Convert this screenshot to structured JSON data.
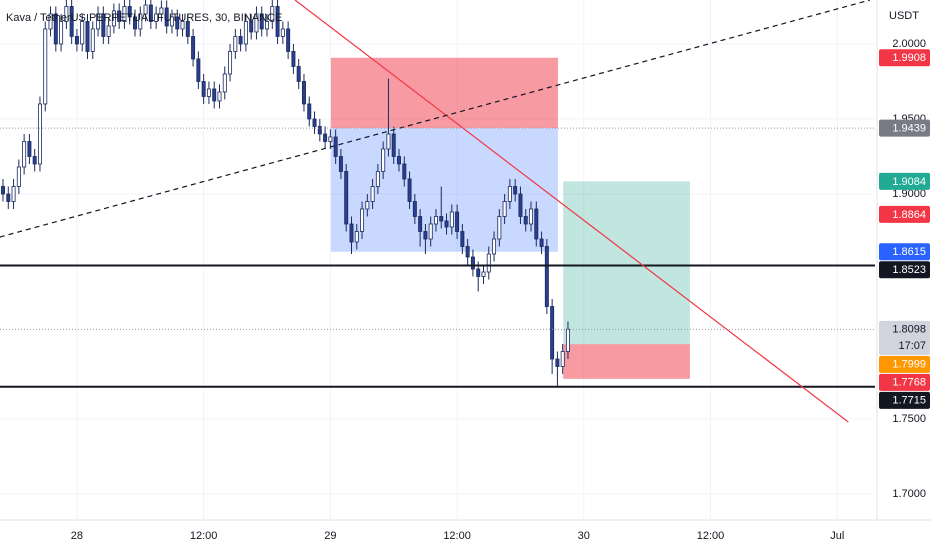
{
  "chart_data": {
    "type": "candlestick",
    "title": "Kava / TetherUS PERPETUAL FUTURES, 30, BINANCE",
    "y_unit": "USDT",
    "countdown": "17:07",
    "up_color": "#ffffff",
    "down_color": "#2a3f8f",
    "wick_color": "#1b2a5e",
    "xlim": [
      -0.57,
      165.15
    ],
    "ylim": [
      1.6827,
      2.0293
    ],
    "grid": true,
    "xticks": [
      {
        "value": 14,
        "label": "28"
      },
      {
        "value": 38,
        "label": "12:00"
      },
      {
        "value": 62,
        "label": "29"
      },
      {
        "value": 86,
        "label": "12:00"
      },
      {
        "value": 110,
        "label": "30"
      },
      {
        "value": 134,
        "label": "12:00"
      },
      {
        "value": 158,
        "label": "Jul"
      }
    ],
    "yticks": [
      {
        "value": 2,
        "label": "2.0000"
      },
      {
        "value": 1.95,
        "label": "1.9500"
      },
      {
        "value": 1.9,
        "label": "1.9000"
      },
      {
        "value": 1.75,
        "label": "1.7500"
      },
      {
        "value": 1.7,
        "label": "1.7000"
      }
    ],
    "open": [
      1.905,
      1.9,
      1.895,
      1.905,
      1.918,
      1.935,
      1.925,
      1.92,
      1.96,
      2.01,
      2.02,
      2.0,
      2.015,
      2.025,
      2.005,
      2.0,
      2.015,
      1.995,
      2.01,
      2.02,
      2.005,
      2.012,
      2.022,
      2.015,
      2.025,
      2.018,
      2.01,
      2.02,
      2.026,
      2.015,
      2.02,
      2.024,
      2.012,
      2.018,
      2.01,
      2.015,
      2.005,
      1.99,
      1.975,
      1.965,
      1.97,
      1.962,
      1.968,
      1.98,
      1.995,
      2.005,
      2.0,
      2.015,
      2.008,
      2.02,
      2.01,
      2.015,
      2.025,
      2.005,
      2.01,
      1.995,
      1.985,
      1.975,
      1.96,
      1.95,
      1.945,
      1.94,
      1.935,
      1.938,
      1.925,
      1.915,
      1.88,
      1.868,
      1.875,
      1.89,
      1.895,
      1.905,
      1.915,
      1.93,
      1.94,
      1.925,
      1.92,
      1.91,
      1.895,
      1.885,
      1.875,
      1.87,
      1.88,
      1.885,
      1.882,
      1.878,
      1.888,
      1.875,
      1.865,
      1.858,
      1.85,
      1.845,
      1.848,
      1.86,
      1.87,
      1.885,
      1.895,
      1.905,
      1.9,
      1.885,
      1.88,
      1.89,
      1.87,
      1.865,
      1.825,
      1.79,
      1.785,
      1.795
    ],
    "high": [
      1.91,
      1.905,
      1.91,
      1.923,
      1.94,
      1.94,
      1.93,
      1.965,
      2.015,
      2.025,
      2.025,
      2.02,
      2.03,
      2.03,
      2.01,
      2.02,
      2.02,
      2.015,
      2.025,
      2.025,
      2.017,
      2.027,
      2.027,
      2.03,
      2.03,
      2.023,
      2.025,
      2.031,
      2.031,
      2.025,
      2.029,
      2.029,
      2.023,
      2.023,
      2.02,
      2.02,
      2.01,
      1.995,
      1.98,
      1.975,
      1.975,
      1.973,
      1.985,
      2.0,
      2.01,
      2.01,
      2.02,
      2.02,
      2.025,
      2.025,
      2.02,
      2.03,
      2.03,
      2.015,
      2.015,
      2.0,
      1.99,
      1.98,
      1.965,
      1.955,
      1.95,
      1.945,
      1.943,
      1.943,
      1.93,
      1.92,
      1.885,
      1.88,
      1.895,
      1.9,
      1.91,
      1.92,
      1.935,
      1.977,
      1.945,
      1.93,
      1.925,
      1.915,
      1.9,
      1.89,
      1.88,
      1.885,
      1.89,
      1.905,
      1.887,
      1.893,
      1.893,
      1.88,
      1.87,
      1.863,
      1.855,
      1.853,
      1.865,
      1.875,
      1.89,
      1.9,
      1.91,
      1.91,
      1.905,
      1.89,
      1.895,
      1.895,
      1.875,
      1.87,
      1.83,
      1.795,
      1.8,
      1.815
    ],
    "low": [
      1.895,
      1.89,
      1.89,
      1.9,
      1.913,
      1.92,
      1.915,
      1.915,
      1.955,
      2.005,
      1.995,
      1.995,
      2.01,
      2.0,
      1.995,
      1.995,
      1.99,
      1.99,
      2.005,
      2.0,
      2.0,
      2.007,
      2.01,
      2.01,
      2.013,
      2.005,
      2.005,
      2.015,
      2.01,
      2.01,
      2.015,
      2.007,
      2.007,
      2.005,
      2.005,
      2.0,
      1.985,
      1.97,
      1.96,
      1.96,
      1.957,
      1.957,
      1.963,
      1.975,
      1.99,
      1.995,
      1.995,
      2.003,
      2.003,
      2.005,
      2.005,
      2.01,
      2.0,
      2.0,
      1.99,
      1.98,
      1.97,
      1.955,
      1.945,
      1.94,
      1.935,
      1.93,
      1.93,
      1.92,
      1.91,
      1.875,
      1.86,
      1.863,
      1.87,
      1.885,
      1.89,
      1.9,
      1.91,
      1.925,
      1.92,
      1.915,
      1.905,
      1.89,
      1.88,
      1.865,
      1.86,
      1.865,
      1.875,
      1.877,
      1.873,
      1.873,
      1.87,
      1.86,
      1.853,
      1.845,
      1.835,
      1.84,
      1.843,
      1.855,
      1.865,
      1.88,
      1.89,
      1.895,
      1.88,
      1.875,
      1.875,
      1.865,
      1.86,
      1.82,
      1.78,
      1.7715,
      1.78,
      1.79
    ],
    "close": [
      1.9,
      1.895,
      1.905,
      1.918,
      1.935,
      1.925,
      1.92,
      1.96,
      2.01,
      2.02,
      2.0,
      2.015,
      2.025,
      2.005,
      2.0,
      2.015,
      1.995,
      2.01,
      2.02,
      2.005,
      2.012,
      2.022,
      2.015,
      2.025,
      2.018,
      2.01,
      2.02,
      2.026,
      2.015,
      2.02,
      2.024,
      2.012,
      2.018,
      2.01,
      2.015,
      2.005,
      1.99,
      1.975,
      1.965,
      1.97,
      1.962,
      1.968,
      1.98,
      1.995,
      2.005,
      2.0,
      2.015,
      2.008,
      2.02,
      2.01,
      2.015,
      2.025,
      2.005,
      2.01,
      1.995,
      1.985,
      1.975,
      1.96,
      1.95,
      1.945,
      1.94,
      1.935,
      1.938,
      1.925,
      1.915,
      1.88,
      1.868,
      1.875,
      1.89,
      1.895,
      1.905,
      1.915,
      1.93,
      1.94,
      1.925,
      1.92,
      1.91,
      1.895,
      1.885,
      1.875,
      1.87,
      1.88,
      1.885,
      1.882,
      1.878,
      1.888,
      1.875,
      1.865,
      1.858,
      1.85,
      1.845,
      1.848,
      1.86,
      1.87,
      1.885,
      1.895,
      1.905,
      1.9,
      1.885,
      1.88,
      1.89,
      1.87,
      1.865,
      1.825,
      1.79,
      1.785,
      1.795,
      1.8098
    ],
    "positions": [
      {
        "x": [
          62.1,
          105.1
        ],
        "stop": 1.9908,
        "entry": 1.9439,
        "target": 1.8615
      },
      {
        "x": [
          106.1,
          130.1
        ],
        "stop": 1.7768,
        "entry": 1.7999,
        "target": 1.9084
      }
    ],
    "trend_lines": [
      {
        "x": [
          55.3,
          160.1
        ],
        "y": [
          2.0293,
          1.748
        ],
        "color": "#f23645",
        "dashed": false
      },
      {
        "x": [
          -0.6,
          164.2
        ],
        "y": [
          1.8713,
          2.0293
        ],
        "color": "#131722",
        "dashed": true
      }
    ],
    "horizontal_lines": [
      1.8523,
      1.7715
    ],
    "price_badges": [
      {
        "value": 1.9908,
        "color": "#f23645"
      },
      {
        "value": 1.9439,
        "color": "#787b86"
      },
      {
        "value": 1.9084,
        "color": "#22ab94"
      },
      {
        "value": 1.8864,
        "color": "#f23645"
      },
      {
        "value": 1.8615,
        "color": "#2962ff"
      },
      {
        "value": 1.8523,
        "color": "#131722"
      },
      {
        "value": 1.8098,
        "color": "#d1d4dc"
      },
      {
        "value": 1.7999,
        "color": "#ff9800"
      },
      {
        "value": 1.7768,
        "color": "#f23645"
      },
      {
        "value": 1.7715,
        "color": "#131722"
      }
    ]
  }
}
